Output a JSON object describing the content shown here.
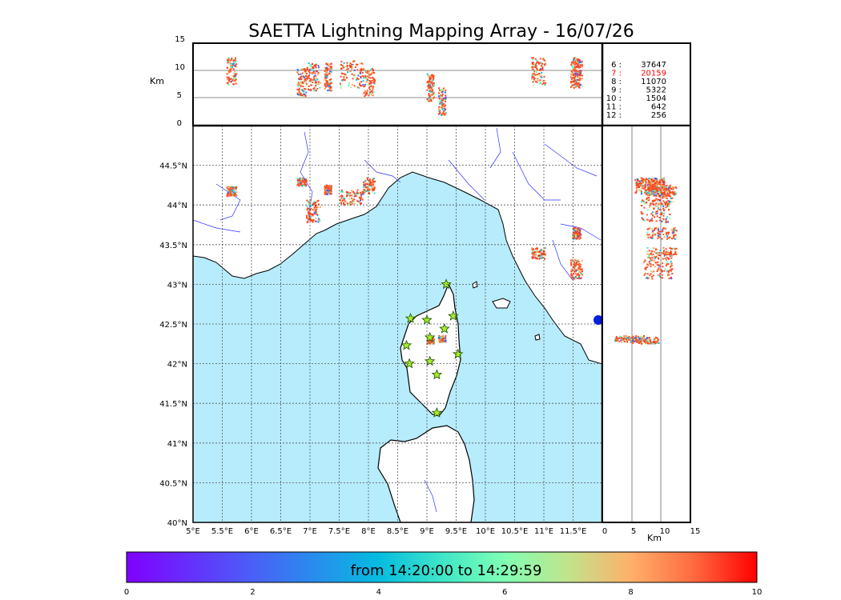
{
  "title": "SAETTA Lightning Mapping Array - 16/07/26",
  "altitude_axis": {
    "label": "Km",
    "ticks": [
      "0",
      "5",
      "10",
      "15"
    ]
  },
  "map": {
    "lon_ticks": [
      "5°E",
      "5.5°E",
      "6°E",
      "6.5°E",
      "7°E",
      "7.5°E",
      "8°E",
      "8.5°E",
      "9°E",
      "9.5°E",
      "10°E",
      "10.5°E",
      "11°E",
      "11.5°E"
    ],
    "lat_ticks": [
      "44.5°N",
      "44°N",
      "43.5°N",
      "43°N",
      "42.5°N",
      "42°N",
      "41.5°N",
      "41°N",
      "40.5°N",
      "40°N"
    ],
    "extent": {
      "lon_min": 5,
      "lon_max": 12,
      "lat_min": 40,
      "lat_max": 45
    },
    "colors": {
      "sea": "#b6ecfc",
      "land": "#ffffff",
      "rivers": "#3030ff",
      "grid": "#555555"
    }
  },
  "side_panel": {
    "xlabel": "Km",
    "ticks": [
      "0",
      "5",
      "10",
      "15"
    ]
  },
  "station_counts": [
    {
      "label": "6 :",
      "value": "37647",
      "color": "#000000"
    },
    {
      "label": "7 :",
      "value": "20159",
      "color": "#ff0000"
    },
    {
      "label": "8 :",
      "value": "11070",
      "color": "#000000"
    },
    {
      "label": "9 :",
      "value": "5322",
      "color": "#000000"
    },
    {
      "label": "10 :",
      "value": "1504",
      "color": "#000000"
    },
    {
      "label": "11 :",
      "value": "642",
      "color": "#000000"
    },
    {
      "label": "12 :",
      "value": "256",
      "color": "#000000"
    }
  ],
  "colorbar": {
    "text": "from 14:20:00 to 14:29:59",
    "ticks": [
      "0",
      "2",
      "4",
      "6",
      "8",
      "10"
    ],
    "range": [
      0,
      10
    ]
  },
  "stations": [
    [
      9.33,
      43.0
    ],
    [
      8.72,
      42.57
    ],
    [
      9.0,
      42.55
    ],
    [
      9.45,
      42.6
    ],
    [
      9.3,
      42.44
    ],
    [
      9.05,
      42.33
    ],
    [
      8.65,
      42.23
    ],
    [
      8.7,
      42.0
    ],
    [
      9.05,
      42.03
    ],
    [
      9.53,
      42.12
    ],
    [
      9.17,
      41.86
    ],
    [
      9.17,
      41.38
    ]
  ],
  "lightning_cells": [
    {
      "lon": 5.65,
      "lat": 44.18,
      "alt": 10,
      "w": 0.08,
      "h": 0.06
    },
    {
      "lon": 7.05,
      "lat": 43.93,
      "alt": 9,
      "w": 0.12,
      "h": 0.14
    },
    {
      "lon": 6.85,
      "lat": 44.3,
      "alt": 8,
      "w": 0.08,
      "h": 0.05
    },
    {
      "lon": 7.3,
      "lat": 44.2,
      "alt": 9,
      "w": 0.06,
      "h": 0.06
    },
    {
      "lon": 7.7,
      "lat": 44.1,
      "alt": 9.5,
      "w": 0.2,
      "h": 0.1
    },
    {
      "lon": 8.0,
      "lat": 44.25,
      "alt": 8,
      "w": 0.1,
      "h": 0.1
    },
    {
      "lon": 10.9,
      "lat": 43.4,
      "alt": 10,
      "w": 0.12,
      "h": 0.07
    },
    {
      "lon": 11.55,
      "lat": 43.2,
      "alt": 9.5,
      "w": 0.1,
      "h": 0.12
    },
    {
      "lon": 11.55,
      "lat": 43.65,
      "alt": 10,
      "w": 0.07,
      "h": 0.07
    },
    {
      "lon": 9.05,
      "lat": 42.3,
      "alt": 7,
      "w": 0.06,
      "h": 0.04
    },
    {
      "lon": 9.25,
      "lat": 42.32,
      "alt": 4.5,
      "w": 0.06,
      "h": 0.04
    }
  ]
}
